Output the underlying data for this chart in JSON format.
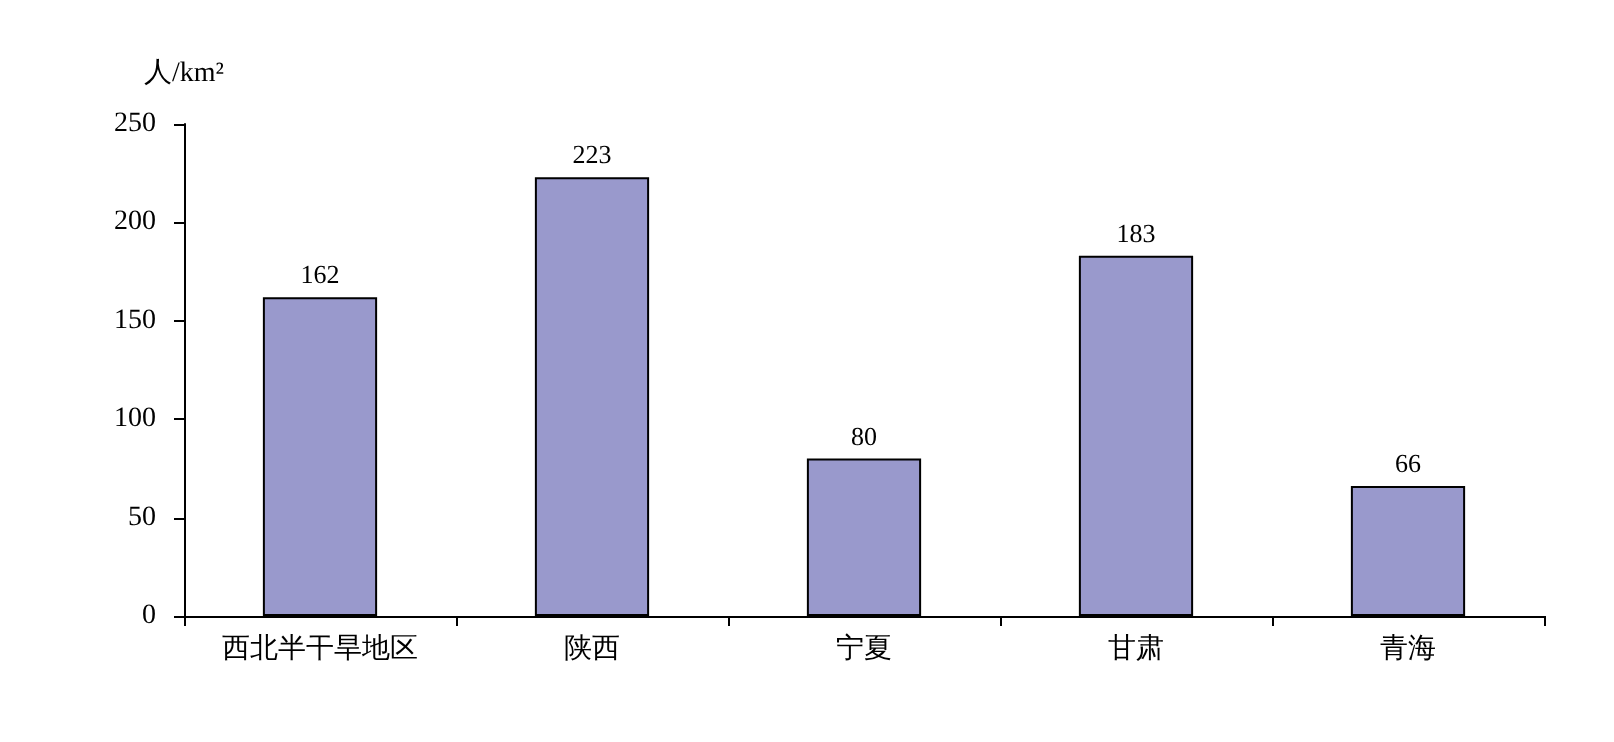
{
  "chart_data": {
    "type": "bar",
    "ylabel": "人/km²",
    "categories": [
      "西北半干旱地区",
      "陕西",
      "宁夏",
      "甘肃",
      "青海"
    ],
    "values": [
      162,
      223,
      80,
      183,
      66
    ],
    "color": "#9999cc",
    "ylim": [
      0,
      250
    ],
    "yticks": [
      0,
      50,
      100,
      150,
      200,
      250
    ],
    "grid": false,
    "data_labels": true
  }
}
